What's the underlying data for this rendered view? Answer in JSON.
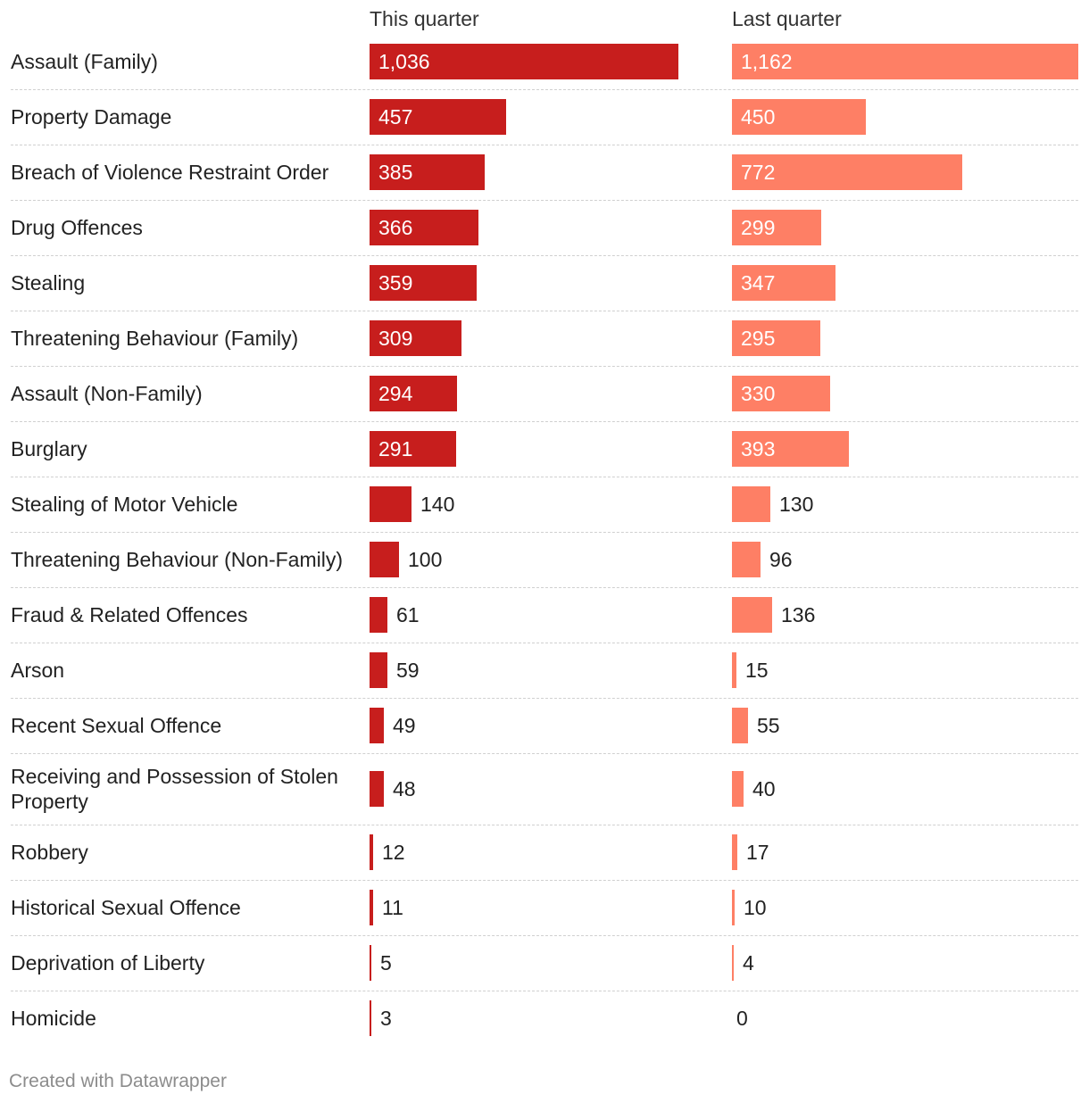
{
  "chart_data": {
    "type": "bar",
    "orientation": "horizontal",
    "columns": [
      "This quarter",
      "Last quarter"
    ],
    "colors": {
      "this_quarter": "#c71e1d",
      "last_quarter": "#fe7f65"
    },
    "categories": [
      "Assault (Family)",
      "Property Damage",
      "Breach of Violence Restraint Order",
      "Drug Offences",
      "Stealing",
      "Threatening Behaviour (Family)",
      "Assault (Non-Family)",
      "Burglary",
      "Stealing of Motor Vehicle",
      "Threatening Behaviour (Non-Family)",
      "Fraud & Related Offences",
      "Arson",
      "Recent Sexual Offence",
      "Receiving and Possession of Stolen Property",
      "Robbery",
      "Historical Sexual Offence",
      "Deprivation of Liberty",
      "Homicide"
    ],
    "series": [
      {
        "name": "This quarter",
        "values": [
          1036,
          457,
          385,
          366,
          359,
          309,
          294,
          291,
          140,
          100,
          61,
          59,
          49,
          48,
          12,
          11,
          5,
          3
        ]
      },
      {
        "name": "Last quarter",
        "values": [
          1162,
          450,
          772,
          299,
          347,
          295,
          330,
          393,
          130,
          96,
          136,
          15,
          55,
          40,
          17,
          10,
          4,
          0
        ]
      }
    ],
    "value_labels": {
      "this_quarter": [
        "1,036",
        "457",
        "385",
        "366",
        "359",
        "309",
        "294",
        "291",
        "140",
        "100",
        "61",
        "59",
        "49",
        "48",
        "12",
        "11",
        "5",
        "3"
      ],
      "last_quarter": [
        "1,162",
        "450",
        "772",
        "299",
        "347",
        "295",
        "330",
        "393",
        "130",
        "96",
        "136",
        "15",
        "55",
        "40",
        "17",
        "10",
        "4",
        "0"
      ]
    },
    "xlim": [
      0,
      1162
    ],
    "grid": false,
    "legend": "column headers"
  },
  "footer": {
    "credit": "Created with Datawrapper"
  }
}
